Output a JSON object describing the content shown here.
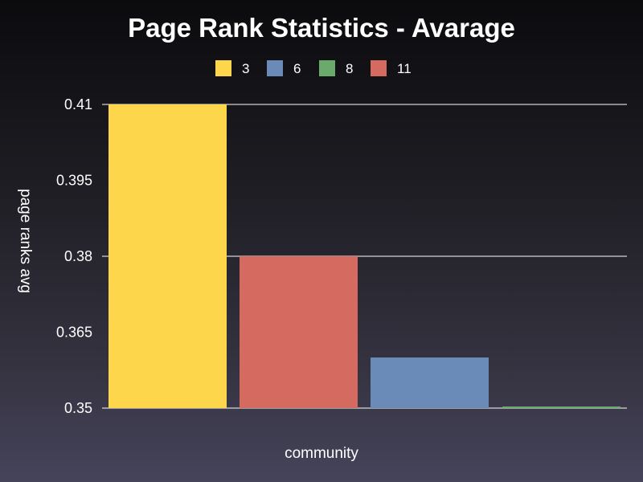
{
  "chart_data": {
    "type": "bar",
    "title": "Page Rank Statistics - Avarage",
    "xlabel": "community",
    "ylabel": "page ranks avg",
    "ylim": [
      0.35,
      0.41
    ],
    "yticks": [
      "0.41",
      "0.395",
      "0.38",
      "0.365",
      "0.35"
    ],
    "ytick_values": [
      0.41,
      0.395,
      0.38,
      0.365,
      0.35
    ],
    "gridlines_at": [
      0.41,
      0.38,
      0.35
    ],
    "legend_position": "top-center",
    "series": [
      {
        "name": "3",
        "value": 0.41,
        "color": "#fdd64b"
      },
      {
        "name": "11",
        "value": 0.38,
        "color": "#d56a60"
      },
      {
        "name": "6",
        "value": 0.36,
        "color": "#6a8bb8"
      },
      {
        "name": "8",
        "value": 0.35,
        "color": "#6aaa6a"
      }
    ],
    "legend": [
      {
        "name": "3",
        "color": "#fdd64b"
      },
      {
        "name": "6",
        "color": "#6a8bb8"
      },
      {
        "name": "8",
        "color": "#6aaa6a"
      },
      {
        "name": "11",
        "color": "#d56a60"
      }
    ]
  }
}
